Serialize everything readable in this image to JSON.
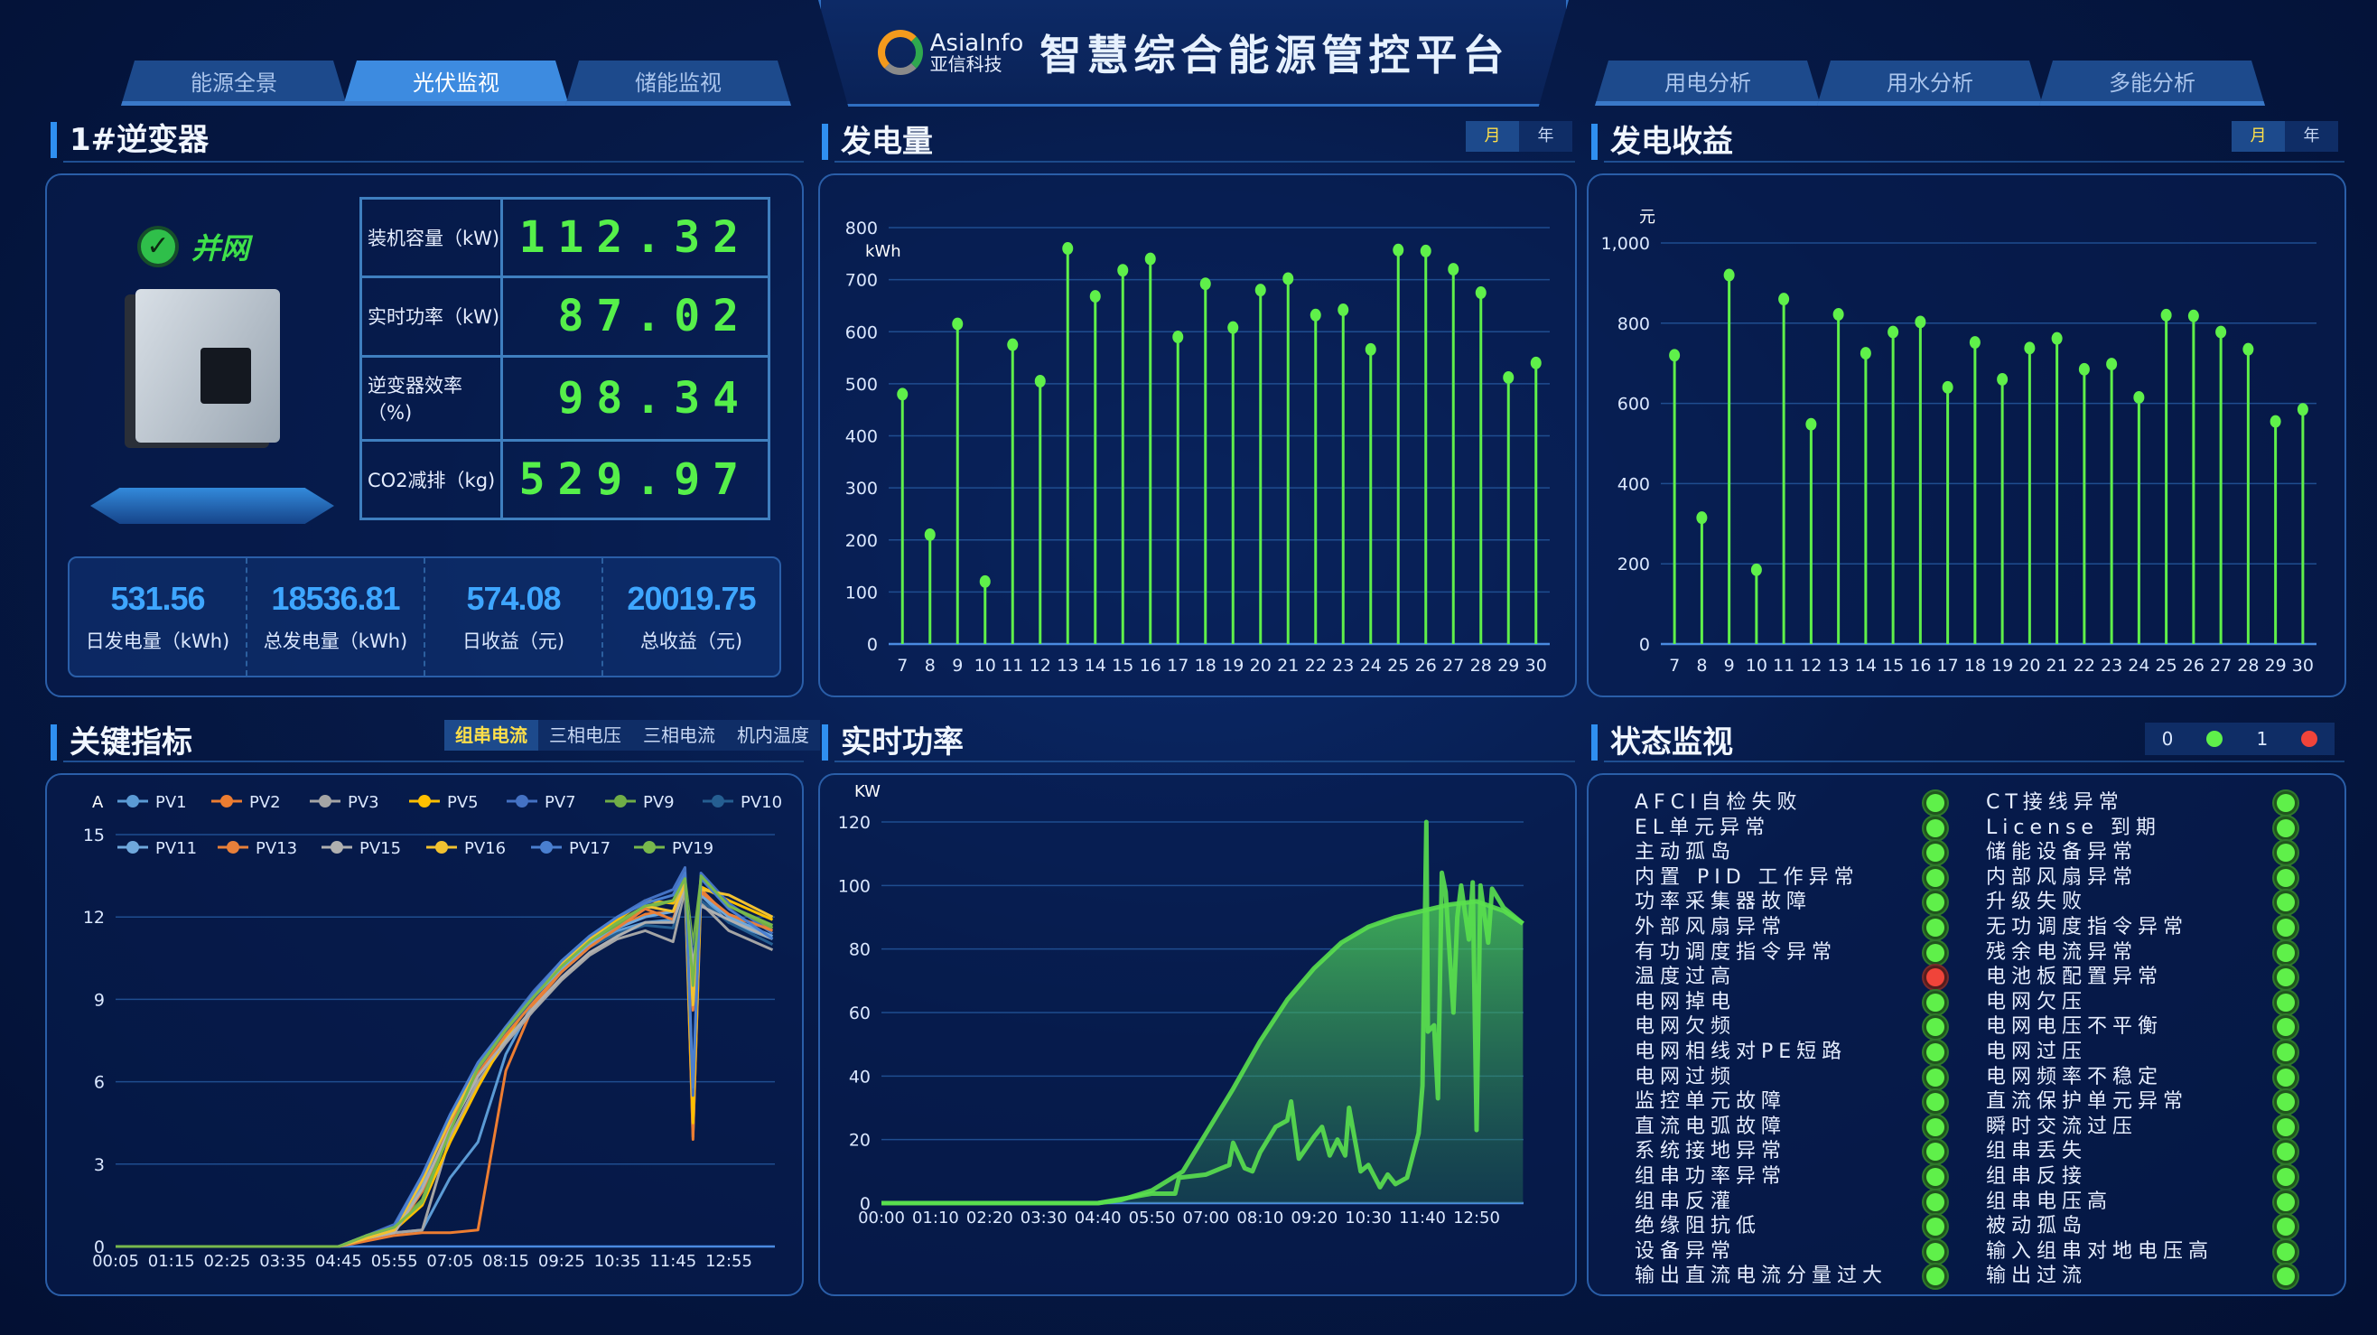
{
  "header": {
    "logo_en": "AsiaInfo",
    "logo_cn": "亚信科技",
    "title": "智慧综合能源管控平台"
  },
  "nav_left": [
    {
      "label": "能源全景",
      "active": false
    },
    {
      "label": "光伏监视",
      "active": true
    },
    {
      "label": "储能监视",
      "active": false
    }
  ],
  "nav_right": [
    {
      "label": "用电分析"
    },
    {
      "label": "用水分析"
    },
    {
      "label": "多能分析"
    }
  ],
  "inverter": {
    "title": "1#逆变器",
    "status": "并网",
    "status_icon": "check-circle-icon",
    "metrics": [
      {
        "label": "装机容量（kW)",
        "value": "112.32"
      },
      {
        "label": "实时功率（kW)",
        "value": "87.02"
      },
      {
        "label": "逆变器效率（%)",
        "value": "98.34"
      },
      {
        "label": "CO2减排（kg)",
        "value": "529.97"
      }
    ],
    "summary": [
      {
        "value": "531.56",
        "label": "日发电量（kWh)"
      },
      {
        "value": "18536.81",
        "label": "总发电量（kWh)"
      },
      {
        "value": "574.08",
        "label": "日收益（元)"
      },
      {
        "value": "20019.75",
        "label": "总收益（元)"
      }
    ]
  },
  "generation": {
    "title": "发电量",
    "toggle": [
      "月",
      "年"
    ],
    "active": "月"
  },
  "revenue": {
    "title": "发电收益",
    "toggle": [
      "月",
      "年"
    ],
    "active": "月"
  },
  "key": {
    "title": "关键指标",
    "tabs": [
      "组串电流",
      "三相电压",
      "三相电流",
      "机内温度"
    ],
    "active": "组串电流"
  },
  "realtime": {
    "title": "实时功率"
  },
  "status": {
    "title": "状态监视",
    "legend": [
      {
        "value": "0",
        "color": "#5ff04a"
      },
      {
        "value": "1",
        "color": "#f0443a"
      }
    ],
    "left": [
      [
        "AFCI自检失败",
        0
      ],
      [
        "EL单元异常",
        0
      ],
      [
        "主动孤岛",
        0
      ],
      [
        "内置 PID 工作异常",
        0
      ],
      [
        "功率采集器故障",
        0
      ],
      [
        "外部风扇异常",
        0
      ],
      [
        "有功调度指令异常",
        0
      ],
      [
        "温度过高",
        1
      ],
      [
        "电网掉电",
        0
      ],
      [
        "电网欠频",
        0
      ],
      [
        "电网相线对PE短路",
        0
      ],
      [
        "电网过频",
        0
      ],
      [
        "监控单元故障",
        0
      ],
      [
        "直流电弧故障",
        0
      ],
      [
        "系统接地异常",
        0
      ],
      [
        "组串功率异常",
        0
      ],
      [
        "组串反灌",
        0
      ],
      [
        "绝缘阻抗低",
        0
      ],
      [
        "设备异常",
        0
      ],
      [
        "输出直流电流分量过大",
        0
      ]
    ],
    "right": [
      [
        "CT接线异常",
        0
      ],
      [
        "License 到期",
        0
      ],
      [
        "储能设备异常",
        0
      ],
      [
        "内部风扇异常",
        0
      ],
      [
        "升级失败",
        0
      ],
      [
        "无功调度指令异常",
        0
      ],
      [
        "残余电流异常",
        0
      ],
      [
        "电池板配置异常",
        0
      ],
      [
        "电网欠压",
        0
      ],
      [
        "电网电压不平衡",
        0
      ],
      [
        "电网过压",
        0
      ],
      [
        "电网频率不稳定",
        0
      ],
      [
        "直流保护单元异常",
        0
      ],
      [
        "瞬时交流过压",
        0
      ],
      [
        "组串丢失",
        0
      ],
      [
        "组串反接",
        0
      ],
      [
        "组串电压高",
        0
      ],
      [
        "被动孤岛",
        0
      ],
      [
        "输入组串对地电压高",
        0
      ],
      [
        "输出过流",
        0
      ]
    ]
  },
  "chart_data": [
    {
      "id": "generation",
      "type": "bar",
      "style": "lollipop",
      "ylabel": "kWh",
      "ylim": [
        0,
        800
      ],
      "yticks": [
        0,
        100,
        200,
        300,
        400,
        500,
        600,
        700,
        800
      ],
      "color": "#5ff04a",
      "grid": true,
      "categories": [
        "7",
        "8",
        "9",
        "10",
        "11",
        "12",
        "13",
        "14",
        "15",
        "16",
        "17",
        "18",
        "19",
        "20",
        "21",
        "22",
        "23",
        "24",
        "25",
        "26",
        "27",
        "28",
        "29",
        "30"
      ],
      "values": [
        480,
        210,
        615,
        120,
        575,
        505,
        760,
        668,
        718,
        740,
        590,
        692,
        608,
        680,
        702,
        632,
        642,
        566,
        757,
        755,
        720,
        675,
        512,
        540
      ]
    },
    {
      "id": "revenue",
      "type": "bar",
      "style": "lollipop",
      "ylabel": "元",
      "ylim": [
        0,
        1000
      ],
      "yticks": [
        0,
        200,
        400,
        600,
        800,
        1000
      ],
      "ytick_labels": [
        "0",
        "200",
        "400",
        "600",
        "800",
        "1,000"
      ],
      "color": "#5ff04a",
      "grid": true,
      "categories": [
        "7",
        "8",
        "9",
        "10",
        "11",
        "12",
        "13",
        "14",
        "15",
        "16",
        "17",
        "18",
        "19",
        "20",
        "21",
        "22",
        "23",
        "24",
        "25",
        "26",
        "27",
        "28",
        "29",
        "30"
      ],
      "values": [
        720,
        315,
        920,
        185,
        860,
        548,
        822,
        725,
        778,
        803,
        640,
        752,
        660,
        738,
        762,
        685,
        698,
        615,
        820,
        818,
        778,
        735,
        555,
        585
      ]
    },
    {
      "id": "key",
      "type": "line",
      "ylabel": "A",
      "ylim": [
        0,
        15
      ],
      "yticks": [
        0,
        3,
        6,
        9,
        12,
        15
      ],
      "grid": true,
      "legend": "top",
      "xticks": [
        "00:05",
        "01:15",
        "02:25",
        "03:35",
        "04:45",
        "05:55",
        "07:05",
        "08:15",
        "09:25",
        "10:35",
        "11:45",
        "12:55"
      ],
      "x": [
        "00:05",
        "01:15",
        "02:25",
        "03:35",
        "04:45",
        "05:20",
        "05:55",
        "06:30",
        "07:05",
        "07:40",
        "08:15",
        "08:50",
        "09:25",
        "10:00",
        "10:35",
        "11:10",
        "11:45",
        "12:00",
        "12:10",
        "12:20",
        "12:55",
        "13:50"
      ],
      "series": [
        {
          "name": "PV1",
          "color": "#5b9bd5",
          "values": [
            0,
            0,
            0,
            0,
            0,
            0.3,
            0.5,
            0.6,
            2.5,
            3.8,
            7.0,
            8.9,
            10.0,
            10.9,
            11.5,
            11.8,
            11.9,
            13.0,
            4.0,
            12.8,
            11.8,
            11.2
          ]
        },
        {
          "name": "PV2",
          "color": "#ed7d31",
          "values": [
            0,
            0,
            0,
            0,
            0,
            0.2,
            0.4,
            0.5,
            0.5,
            0.6,
            6.4,
            8.8,
            10.0,
            10.9,
            11.6,
            12.1,
            12.2,
            13.4,
            3.9,
            13.0,
            12.0,
            11.6
          ]
        },
        {
          "name": "PV3",
          "color": "#a5a5a5",
          "values": [
            0,
            0,
            0,
            0,
            0,
            0.3,
            0.5,
            0.6,
            4.0,
            6.0,
            7.4,
            8.6,
            9.7,
            10.6,
            11.2,
            11.5,
            11.1,
            13.0,
            10.0,
            12.5,
            11.5,
            10.8
          ]
        },
        {
          "name": "PV5",
          "color": "#ffc000",
          "values": [
            0,
            0,
            0,
            0,
            0,
            0.3,
            0.6,
            1.5,
            3.8,
            5.8,
            7.6,
            9.0,
            10.2,
            11.2,
            11.9,
            12.6,
            12.5,
            13.3,
            4.5,
            13.1,
            12.6,
            11.9
          ]
        },
        {
          "name": "PV7",
          "color": "#4472c4",
          "values": [
            0,
            0,
            0,
            0,
            0,
            0.4,
            0.8,
            2.6,
            4.8,
            6.6,
            8.0,
            9.3,
            10.4,
            11.3,
            12.0,
            12.6,
            13.0,
            13.8,
            5.5,
            13.6,
            12.5,
            11.4
          ]
        },
        {
          "name": "PV9",
          "color": "#70ad47",
          "values": [
            0,
            0,
            0,
            0,
            0,
            0.4,
            0.7,
            1.7,
            4.4,
            6.6,
            8.0,
            9.2,
            10.3,
            11.1,
            11.7,
            12.3,
            12.6,
            13.4,
            11.0,
            13.4,
            12.4,
            11.6
          ]
        },
        {
          "name": "PV10",
          "color": "#255e91",
          "values": [
            0,
            0,
            0,
            0,
            0,
            0.3,
            0.5,
            2.2,
            4.6,
            6.4,
            7.8,
            9.0,
            10.0,
            10.9,
            11.4,
            11.7,
            11.6,
            13.2,
            10.5,
            12.6,
            11.8,
            11.0
          ]
        },
        {
          "name": "PV11",
          "color": "#6fa8dc",
          "values": [
            0,
            0,
            0,
            0,
            0,
            0.3,
            0.6,
            2.3,
            4.7,
            6.5,
            7.9,
            9.1,
            10.1,
            11.0,
            11.6,
            12.0,
            12.2,
            13.3,
            9.8,
            12.8,
            12.0,
            11.3
          ]
        },
        {
          "name": "PV13",
          "color": "#e8803a",
          "values": [
            0,
            0,
            0,
            0,
            0,
            0.3,
            0.5,
            2.0,
            4.4,
            6.3,
            7.7,
            8.9,
            10.0,
            10.9,
            11.6,
            12.3,
            11.9,
            13.2,
            8.6,
            12.9,
            12.1,
            11.5
          ]
        },
        {
          "name": "PV15",
          "color": "#b0b0b0",
          "values": [
            0,
            0,
            0,
            0,
            0,
            0.3,
            0.5,
            2.1,
            4.3,
            6.2,
            7.5,
            8.7,
            9.8,
            10.7,
            11.3,
            11.8,
            11.8,
            13.1,
            10.2,
            12.4,
            11.9,
            11.2
          ]
        },
        {
          "name": "PV16",
          "color": "#f2c230",
          "values": [
            0,
            0,
            0,
            0,
            0,
            0.3,
            0.6,
            2.4,
            4.6,
            6.5,
            7.9,
            9.1,
            10.3,
            11.2,
            11.8,
            12.4,
            12.2,
            13.2,
            8.8,
            13.0,
            12.8,
            12.0
          ]
        },
        {
          "name": "PV17",
          "color": "#4a7fd0",
          "values": [
            0,
            0,
            0,
            0,
            0,
            0.4,
            0.7,
            2.6,
            4.8,
            6.7,
            8.0,
            9.2,
            10.4,
            11.3,
            12.0,
            12.5,
            12.8,
            13.6,
            5.8,
            13.4,
            12.3,
            11.2
          ]
        },
        {
          "name": "PV19",
          "color": "#78b84c",
          "values": [
            0,
            0,
            0,
            0,
            0,
            0.4,
            0.7,
            1.6,
            4.2,
            6.5,
            7.9,
            9.1,
            10.2,
            11.1,
            11.8,
            12.4,
            12.6,
            13.4,
            9.5,
            13.5,
            12.4,
            11.7
          ]
        }
      ]
    },
    {
      "id": "realtime",
      "type": "area",
      "ylabel": "KW",
      "ylim": [
        0,
        120
      ],
      "yticks": [
        0,
        20,
        40,
        60,
        80,
        100,
        120
      ],
      "grid": true,
      "color": "#5ff04a",
      "xticks": [
        "00:00",
        "01:10",
        "02:20",
        "03:30",
        "04:40",
        "05:50",
        "07:00",
        "08:10",
        "09:20",
        "10:30",
        "11:40",
        "12:50"
      ],
      "series": [
        {
          "x": [
            "00:00",
            "01:10",
            "02:20",
            "03:30",
            "04:40",
            "05:10",
            "05:50",
            "06:30",
            "07:00",
            "07:35",
            "08:10",
            "08:45",
            "09:20",
            "09:55",
            "10:30",
            "11:05",
            "11:40",
            "12:15",
            "12:50",
            "13:25",
            "13:50"
          ],
          "values": [
            0,
            0,
            0,
            0,
            0,
            1,
            4,
            10,
            22,
            36,
            51,
            64,
            74,
            82,
            87,
            90,
            92,
            94,
            95,
            92,
            88
          ]
        },
        {
          "x": [
            "00:00",
            "04:40",
            "05:50",
            "06:20",
            "06:25",
            "07:00",
            "07:30",
            "07:35",
            "07:50",
            "08:00",
            "08:10",
            "08:30",
            "08:45",
            "08:50",
            "09:00",
            "09:20",
            "09:30",
            "09:40",
            "09:50",
            "10:00",
            "10:05",
            "10:20",
            "10:30",
            "10:45",
            "10:55",
            "11:05",
            "11:20",
            "11:35",
            "11:40",
            "11:45",
            "11:47",
            "11:55",
            "12:00",
            "12:05",
            "12:10",
            "12:20",
            "12:25",
            "12:30",
            "12:40",
            "12:45",
            "12:50",
            "12:55",
            "13:05",
            "13:10",
            "13:25",
            "13:50"
          ],
          "values": [
            0,
            0,
            3,
            3,
            8,
            9,
            12,
            19,
            11,
            10,
            16,
            24,
            26,
            32,
            14,
            21,
            24,
            15,
            20,
            15,
            30,
            10,
            12,
            5,
            9,
            6,
            8,
            22,
            37,
            120,
            54,
            56,
            33,
            104,
            98,
            60,
            90,
            100,
            83,
            101,
            23,
            100,
            82,
            99,
            93,
            88
          ]
        }
      ]
    }
  ]
}
